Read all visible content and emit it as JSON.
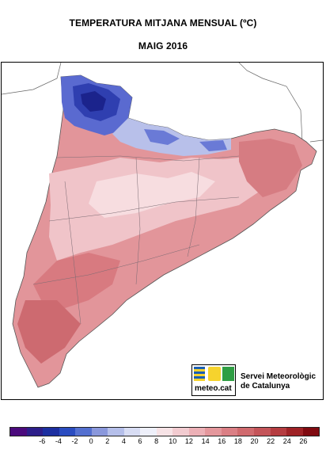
{
  "title": "TEMPERATURA MITJANA MENSUAL (ºC)",
  "subtitle": "MAIG 2016",
  "logo": {
    "brand": "meteo.cat",
    "org_line1": "Servei Meteorològic",
    "org_line2": "de Catalunya"
  },
  "legend": {
    "colors": [
      "#4b0a7d",
      "#2d1e8a",
      "#1c2fa0",
      "#2a4cc0",
      "#5470d0",
      "#8a98dc",
      "#b5bfea",
      "#d8ddf4",
      "#eef0fa",
      "#f7e3e6",
      "#f2cbd0",
      "#ecb0b6",
      "#e4979c",
      "#db7f85",
      "#d06a6e",
      "#c45459",
      "#b53c40",
      "#9f2226",
      "#800a10"
    ],
    "ticks": [
      "-6",
      "-4",
      "-2",
      "0",
      "2",
      "4",
      "6",
      "8",
      "10",
      "12",
      "14",
      "16",
      "18",
      "20",
      "22",
      "24",
      "26"
    ]
  }
}
